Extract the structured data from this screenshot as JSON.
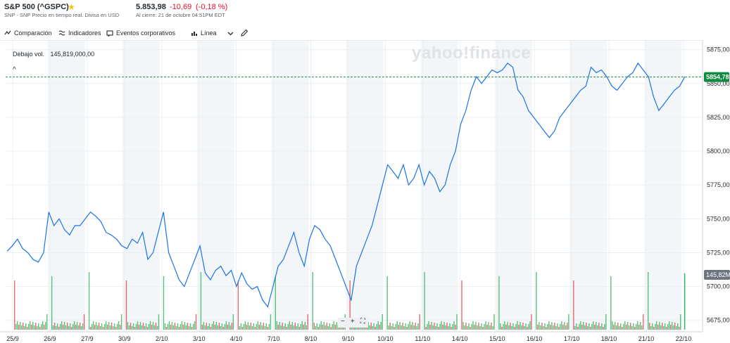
{
  "header": {
    "title": "S&P 500 (^GSPC)",
    "subtitle": "SNP - SNP Precio en tiempo real. Divisa en USD",
    "price": "5.853,98",
    "change": "-10,69",
    "change_pct": "(-0,18 %)",
    "close_note": "Al cierre: 21 de octubre 04:51PM EDT"
  },
  "toolbar": {
    "comparison": "Comparación",
    "indicators": "Indicadores",
    "events": "Eventos corporativos",
    "chart_type": "Línea"
  },
  "volume_label": "Debajo vol.",
  "volume_value": "145,819,000,00",
  "watermark": "yahoo!finance",
  "zoom": {
    "minus": "−",
    "plus": "+",
    "fit": "⛶"
  },
  "colors": {
    "line": "#1a73e8",
    "up_volume": "#2fb35a",
    "down_volume": "#e0464e",
    "last_badge": "#0d8a3e",
    "volume_badge": "#6d7480",
    "band": "#f3f6f9"
  },
  "chart_data": {
    "type": "line",
    "ylim": [
      5665,
      5880
    ],
    "y_ticks": [
      "5875,00",
      "5850,00",
      "5825,00",
      "5800,00",
      "5775,00",
      "5750,00",
      "5725,00",
      "5700,00",
      "5675,00"
    ],
    "y_tick_values": [
      5875,
      5850,
      5825,
      5800,
      5775,
      5750,
      5725,
      5700,
      5675
    ],
    "x_labels": [
      "25/9",
      "26/9",
      "27/9",
      "30/9",
      "2/10",
      "3/10",
      "4/10",
      "7/10",
      "8/10",
      "9/10",
      "10/10",
      "11/10",
      "14/10",
      "15/10",
      "16/10",
      "17/10",
      "18/10",
      "21/10",
      "22/10"
    ],
    "last_value": "5854,78",
    "last_value_num": 5854.78,
    "volume_badge": "145,82M",
    "series": [
      {
        "values": [
          5726,
          5730,
          5735,
          5728,
          5725,
          5720,
          5718,
          5725,
          5755,
          5745,
          5750,
          5742,
          5738,
          5745,
          5745,
          5750,
          5755,
          5752,
          5748,
          5740,
          5738,
          5735,
          5730,
          5728,
          5735,
          5732,
          5740,
          5720,
          5725,
          5740,
          5755,
          5725,
          5715,
          5705,
          5700,
          5710,
          5720,
          5730,
          5710,
          5705,
          5712,
          5715,
          5708,
          5712,
          5700,
          5710,
          5702,
          5698,
          5700,
          5690,
          5685,
          5700,
          5715,
          5720,
          5730,
          5740,
          5725,
          5715,
          5735,
          5745,
          5742,
          5735,
          5730,
          5720,
          5710,
          5700,
          5690,
          5715,
          5725,
          5735,
          5745,
          5760,
          5775,
          5790,
          5785,
          5780,
          5790,
          5775,
          5780,
          5790,
          5775,
          5785,
          5780,
          5770,
          5775,
          5790,
          5800,
          5820,
          5830,
          5845,
          5855,
          5850,
          5855,
          5860,
          5858,
          5860,
          5865,
          5862,
          5845,
          5840,
          5830,
          5825,
          5820,
          5815,
          5810,
          5815,
          5825,
          5830,
          5835,
          5840,
          5845,
          5848,
          5862,
          5858,
          5860,
          5855,
          5848,
          5845,
          5850,
          5855,
          5858,
          5865,
          5860,
          5855,
          5840,
          5830,
          5835,
          5840,
          5845,
          5848,
          5855
        ]
      }
    ]
  }
}
